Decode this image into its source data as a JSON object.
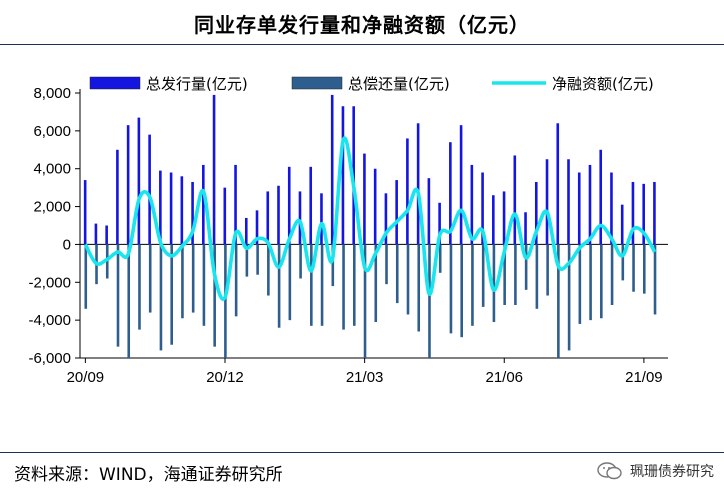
{
  "title": "同业存单发行量和净融资额（亿元）",
  "source": "资料来源：WIND，海通证券研究所",
  "watermark": "珮珊债券研究",
  "colors": {
    "issuance": "#1515e0",
    "repayment": "#2e5e8e",
    "net": "#19e5ee"
  },
  "chart_data": {
    "type": "bar",
    "title": "同业存单发行量和净融资额（亿元）",
    "xlabel": "",
    "ylabel": "",
    "ylim": [
      -6000,
      8000
    ],
    "yticks": [
      -6000,
      -4000,
      -2000,
      0,
      2000,
      4000,
      6000,
      8000
    ],
    "ytick_labels": [
      "-6,000",
      "-4,000",
      "-2,000",
      "0",
      "2,000",
      "4,000",
      "6,000",
      "8,000"
    ],
    "xtick_labels": [
      "20/09",
      "20/12",
      "21/03",
      "21/06",
      "21/09"
    ],
    "xtick_index": [
      0,
      13,
      26,
      39,
      52
    ],
    "legend": [
      "总发行量(亿元)",
      "总偿还量(亿元)",
      "净融资额(亿元)"
    ],
    "legend_position": "top",
    "series": [
      {
        "name": "总发行量(亿元)",
        "type": "bar",
        "values": [
          3400,
          1100,
          1000,
          5000,
          6300,
          6700,
          5800,
          3900,
          3800,
          3600,
          3300,
          4200,
          7900,
          3000,
          4200,
          1400,
          1800,
          2800,
          3100,
          4100,
          2800,
          4100,
          2700,
          7900,
          7300,
          7300,
          4800,
          4000,
          2700,
          3400,
          5600,
          6400,
          3500,
          2200,
          5400,
          6300,
          4200,
          3800,
          2600,
          2800,
          4700,
          1700,
          3300,
          4500,
          6400,
          4500,
          3800,
          4200,
          5000,
          3800,
          2100,
          3300,
          3200,
          3300
        ]
      },
      {
        "name": "总偿还量(亿元)",
        "type": "bar",
        "values": [
          -3400,
          -2100,
          -1800,
          -5400,
          -6000,
          -4500,
          -3600,
          -5600,
          -5300,
          -3900,
          -3600,
          -4300,
          -5400,
          -6000,
          -3800,
          -1700,
          -1600,
          -2700,
          -4400,
          -4000,
          -1800,
          -4300,
          -4300,
          -2200,
          -4500,
          -4300,
          -6000,
          -4100,
          -2100,
          -3100,
          -3700,
          -4600,
          -6000,
          -1500,
          -4700,
          -4900,
          -4300,
          -3300,
          -4100,
          -3200,
          -3200,
          -2400,
          -3400,
          -2700,
          -6000,
          -5600,
          -4200,
          -4000,
          -3900,
          -3200,
          -1900,
          -2500,
          -2600,
          -3700
        ]
      },
      {
        "name": "净融资额(亿元)",
        "type": "line",
        "values": [
          0,
          -1000,
          -800,
          -400,
          -500,
          2400,
          2500,
          100,
          -600,
          -100,
          700,
          2800,
          -1500,
          -2800,
          600,
          -200,
          300,
          100,
          -1200,
          300,
          1200,
          -1400,
          1100,
          -800,
          5500,
          3000,
          -1200,
          -500,
          600,
          1200,
          1800,
          2700,
          -2600,
          500,
          700,
          1800,
          300,
          700,
          -2400,
          -400,
          1600,
          -700,
          700,
          1700,
          -1100,
          -1000,
          -200,
          300,
          1000,
          300,
          -600,
          800,
          600,
          -400
        ]
      }
    ]
  }
}
